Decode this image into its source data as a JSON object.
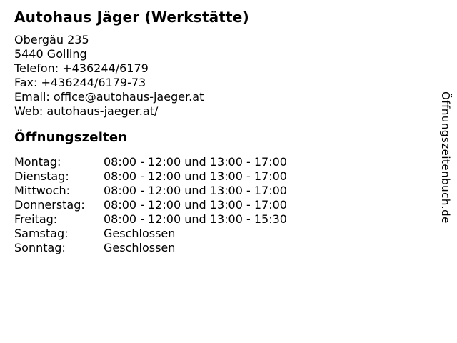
{
  "header": {
    "title": "Autohaus Jäger (Werkstätte)"
  },
  "contact": {
    "lines": [
      "Obergäu 235",
      "5440 Golling",
      "Telefon: +436244/6179",
      "Fax: +436244/6179-73",
      "Email: office@autohaus-jaeger.at",
      "Web: autohaus-jaeger.at/"
    ]
  },
  "opening_hours": {
    "heading": "Öffnungszeiten",
    "rows": [
      {
        "day": "Montag:",
        "hours": "08:00 - 12:00 und 13:00 - 17:00"
      },
      {
        "day": "Dienstag:",
        "hours": "08:00 - 12:00 und 13:00 - 17:00"
      },
      {
        "day": "Mittwoch:",
        "hours": "08:00 - 12:00 und 13:00 - 17:00"
      },
      {
        "day": "Donnerstag:",
        "hours": "08:00 - 12:00 und 13:00 - 17:00"
      },
      {
        "day": "Freitag:",
        "hours": "08:00 - 12:00 und 13:00 - 15:30"
      },
      {
        "day": "Samstag:",
        "hours": "Geschlossen"
      },
      {
        "day": "Sonntag:",
        "hours": "Geschlossen"
      }
    ]
  },
  "watermark": {
    "text": "Öffnungszeitenbuch.de"
  },
  "colors": {
    "text": "#000000",
    "background": "#ffffff"
  }
}
